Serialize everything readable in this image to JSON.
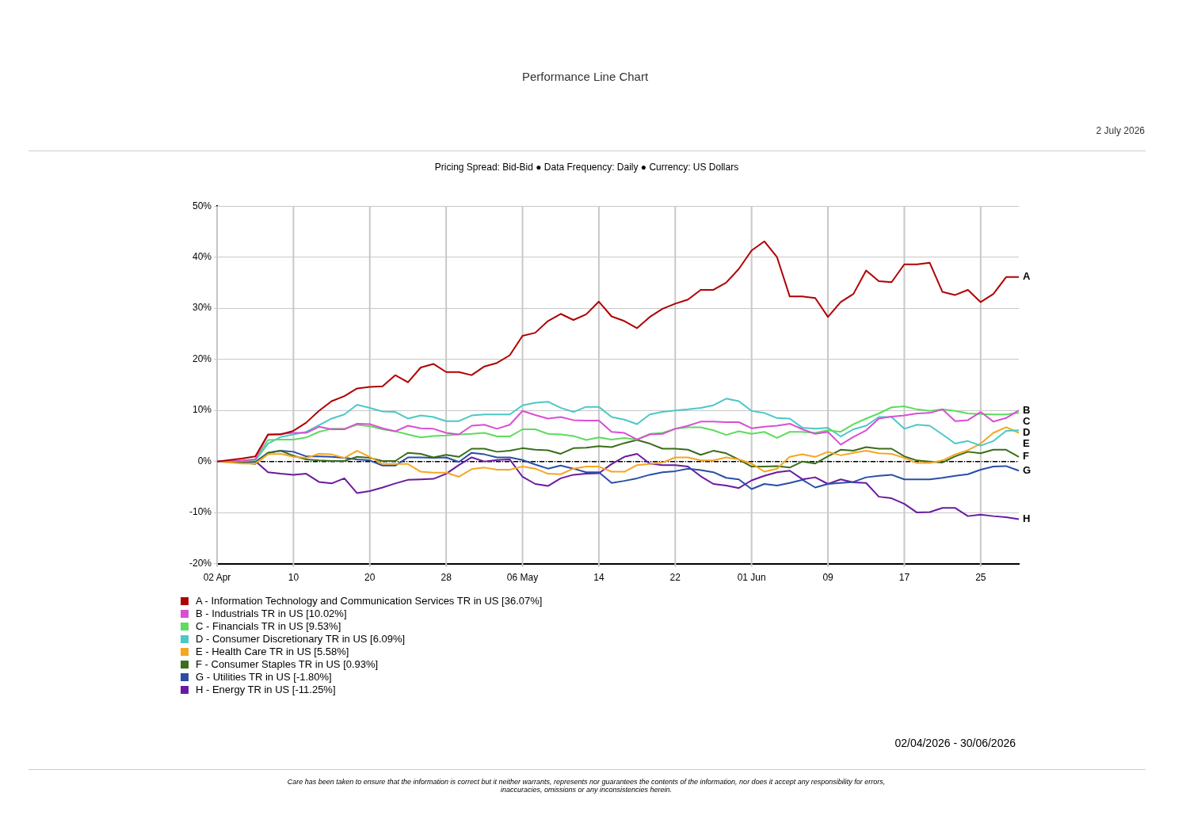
{
  "chart_data": {
    "type": "line",
    "title": "Performance Line Chart",
    "subtitle": "Pricing Spread: Bid-Bid ● Data Frequency: Daily ● Currency: US Dollars",
    "categories": [
      "02 Apr",
      null,
      null,
      null,
      null,
      null,
      "10",
      null,
      null,
      null,
      null,
      null,
      "20",
      null,
      null,
      null,
      null,
      null,
      "28",
      null,
      null,
      null,
      null,
      null,
      "06 May",
      null,
      null,
      null,
      null,
      null,
      "14",
      null,
      null,
      null,
      null,
      null,
      "22",
      null,
      null,
      null,
      null,
      null,
      "01 Jun",
      null,
      null,
      null,
      null,
      null,
      "09",
      null,
      null,
      null,
      null,
      null,
      "17",
      null,
      null,
      null,
      null,
      null,
      "25",
      null,
      null,
      null
    ],
    "ylim": [
      -20,
      50
    ],
    "yticks": [
      {
        "value": -20,
        "label": "-20%"
      },
      {
        "value": -10,
        "label": "-10%"
      },
      {
        "value": 0,
        "label": "0%"
      },
      {
        "value": 10,
        "label": "10%"
      },
      {
        "value": 20,
        "label": "20%"
      },
      {
        "value": 30,
        "label": "30%"
      },
      {
        "value": 40,
        "label": "40%"
      },
      {
        "value": 50,
        "label": "50%"
      }
    ],
    "grid": true,
    "legend": "bottom",
    "marker": "none",
    "line_style": "solid",
    "ref_lines": [
      {
        "axis": "y",
        "value": 0,
        "color": "#000000",
        "line_style": "dashed"
      }
    ],
    "series": [
      {
        "name": "A - Information Technology and Communication Services TR in US [36.07%]",
        "color": "#b00000",
        "values": [
          0,
          0.3,
          0.6,
          1,
          5.3,
          5.3,
          6,
          7.6,
          9.9,
          11.8,
          12.8,
          14.3,
          14.6,
          14.7,
          16.9,
          15.5,
          18.4,
          19.1,
          17.5,
          17.5,
          16.9,
          18.6,
          19.3,
          20.8,
          24.6,
          25.2,
          27.5,
          28.9,
          27.7,
          28.8,
          31.3,
          28.4,
          27.5,
          26.1,
          28.3,
          29.9,
          30.9,
          31.7,
          33.6,
          33.6,
          35,
          37.7,
          41.3,
          43.1,
          40,
          32.3,
          32.3,
          32,
          28.3,
          31.2,
          32.8,
          37.4,
          35.3,
          35.1,
          38.6,
          38.6,
          38.9,
          33.2,
          32.6,
          33.6,
          31.2,
          32.8,
          36.1,
          36.1
        ]
      },
      {
        "name": "B - Industrials TR in US [10.02%]",
        "color": "#d94fd4",
        "values": [
          0,
          0.1,
          0.2,
          0.4,
          5.2,
          5.4,
          5.6,
          5.6,
          6.8,
          6.3,
          6.3,
          7.4,
          7.3,
          6.5,
          5.9,
          7,
          6.5,
          6.4,
          5.6,
          5.3,
          7,
          7.2,
          6.4,
          7.2,
          9.9,
          9.1,
          8.4,
          8.7,
          8.1,
          8,
          8,
          5.8,
          5.6,
          4.3,
          5.3,
          5.4,
          6.4,
          7,
          7.8,
          7.8,
          7.7,
          7.7,
          6.5,
          6.8,
          7,
          7.4,
          6.3,
          5.4,
          5.8,
          3.3,
          4.8,
          6.1,
          8.4,
          8.8,
          9,
          9.4,
          9.5,
          10.2,
          7.9,
          8.1,
          9.7,
          7.8,
          8.5,
          10
        ]
      },
      {
        "name": "C - Financials TR in US [9.53%]",
        "color": "#5ddc5d",
        "values": [
          0,
          0.1,
          0.1,
          0.2,
          4.2,
          4.3,
          4.3,
          4.7,
          5.8,
          6.4,
          6.4,
          7.2,
          6.9,
          6.3,
          5.9,
          5.3,
          4.7,
          5,
          5.1,
          5.3,
          5.4,
          5.6,
          4.9,
          4.9,
          6.3,
          6.3,
          5.4,
          5.3,
          5,
          4.2,
          4.7,
          4.3,
          4.6,
          4.3,
          5.4,
          5.6,
          6.4,
          6.7,
          6.7,
          6.1,
          5.2,
          5.9,
          5.4,
          5.8,
          4.6,
          5.8,
          5.8,
          5.6,
          6.1,
          5.8,
          7.3,
          8.4,
          9.4,
          10.6,
          10.8,
          10.2,
          9.9,
          10.2,
          9.9,
          9.4,
          9.3,
          9.2,
          9.2,
          9.5
        ]
      },
      {
        "name": "D - Consumer Discretionary TR in US [6.09%]",
        "color": "#4cc7c7",
        "values": [
          null,
          null,
          0.2,
          0.2,
          3.5,
          4.8,
          5.3,
          5.8,
          7.1,
          8.4,
          9.2,
          11.1,
          10.5,
          9.8,
          9.7,
          8.4,
          9,
          8.7,
          7.9,
          7.9,
          9,
          9.2,
          9.2,
          9.2,
          11,
          11.5,
          11.7,
          10.5,
          9.7,
          10.7,
          10.7,
          8.7,
          8.2,
          7.3,
          9.2,
          9.7,
          10,
          10.2,
          10.5,
          11,
          12.3,
          11.8,
          9.9,
          9.5,
          8.5,
          8.4,
          6.6,
          6.4,
          6.6,
          4.9,
          6.3,
          7,
          8.7,
          8.7,
          6.4,
          7.2,
          7,
          5.3,
          3.5,
          4,
          3.1,
          4,
          6,
          6.1
        ]
      },
      {
        "name": "E - Health Care TR in US [5.58%]",
        "color": "#f5a623",
        "values": [
          0,
          -0.2,
          -0.4,
          -0.4,
          1.4,
          1.5,
          0.9,
          0.7,
          1.5,
          1.4,
          0.7,
          2.1,
          0.9,
          -0.5,
          -0.5,
          -0.5,
          -2,
          -2.2,
          -2.2,
          -3,
          -1.5,
          -1.2,
          -1.6,
          -1.6,
          -1,
          -1.4,
          -2.4,
          -2.5,
          -1.4,
          -1,
          -1,
          -2,
          -2,
          -0.7,
          -0.5,
          -0.2,
          0.8,
          0.8,
          0.2,
          0.2,
          0.8,
          0.4,
          -0.4,
          -2,
          -1.4,
          0.9,
          1.4,
          0.9,
          1.9,
          1.2,
          1.7,
          2.1,
          1.6,
          1.5,
          0.7,
          -0.3,
          -0.3,
          0.2,
          1.4,
          2.2,
          3.5,
          5.6,
          6.7,
          5.6
        ]
      },
      {
        "name": "F - Consumer Staples TR in US [0.93%]",
        "color": "#3a6e1a",
        "values": [
          0,
          0,
          -0.2,
          -0.5,
          1.7,
          2.1,
          1.1,
          0.4,
          0.2,
          0.1,
          0.1,
          0.9,
          0.7,
          0.1,
          0.1,
          1.7,
          1.5,
          0.8,
          1.3,
          0.9,
          2.5,
          2.5,
          1.9,
          2.1,
          2.6,
          2.3,
          2.2,
          1.5,
          2.6,
          2.7,
          3,
          2.8,
          3.6,
          4.2,
          3.5,
          2.5,
          2.5,
          2.3,
          1.3,
          2.1,
          1.6,
          0.4,
          -1,
          -1,
          -0.9,
          -1.2,
          0,
          -0.4,
          1,
          2.3,
          2.1,
          2.8,
          2.5,
          2.5,
          1,
          0.2,
          0,
          -0.2,
          1,
          1.9,
          1.6,
          2.3,
          2.3,
          0.9
        ]
      },
      {
        "name": "G - Utilities TR in US [-1.80%]",
        "color": "#2a4ea6",
        "values": [
          0,
          0,
          0,
          -0.1,
          1.7,
          2.1,
          1.9,
          1,
          1,
          0.9,
          0.7,
          0.4,
          0.2,
          -0.8,
          -0.8,
          0.8,
          0.8,
          0.7,
          0.8,
          -0.1,
          1.7,
          1.4,
          0.8,
          0.8,
          0.3,
          -0.6,
          -1.4,
          -0.8,
          -1.4,
          -2.1,
          -2.1,
          -4.2,
          -3.8,
          -3.3,
          -2.6,
          -2.1,
          -1.9,
          -1.4,
          -1.7,
          -2.1,
          -3.2,
          -3.5,
          -5.4,
          -4.4,
          -4.7,
          -4.2,
          -3.6,
          -5.1,
          -4.4,
          -4.2,
          -4,
          -3.1,
          -2.8,
          -2.6,
          -3.5,
          -3.5,
          -3.5,
          -3.2,
          -2.8,
          -2.5,
          -1.6,
          -1,
          -0.9,
          -1.8
        ]
      },
      {
        "name": "H - Energy TR in US [-11.25%]",
        "color": "#6a1aa0",
        "values": [
          0,
          0,
          0,
          0.1,
          -2.1,
          -2.4,
          -2.6,
          -2.4,
          -4,
          -4.3,
          -3.3,
          -6.2,
          -5.8,
          -5.1,
          -4.3,
          -3.6,
          -3.5,
          -3.4,
          -2.4,
          -0.7,
          0.8,
          0,
          0.3,
          0.4,
          -3,
          -4.4,
          -4.8,
          -3.3,
          -2.6,
          -2.4,
          -2.3,
          -0.5,
          0.9,
          1.5,
          -0.4,
          -0.7,
          -0.7,
          -1,
          -2.9,
          -4.4,
          -4.7,
          -5.2,
          -3.7,
          -2.8,
          -2.1,
          -1.8,
          -3.5,
          -3.1,
          -4.4,
          -3.5,
          -4.1,
          -4.2,
          -6.9,
          -7.2,
          -8.3,
          -10,
          -9.9,
          -9.1,
          -9.1,
          -10.7,
          -10.4,
          -10.7,
          -10.9,
          -11.3
        ]
      }
    ],
    "annotations": [
      "2 July 2026",
      "02/04/2026 - 30/06/2026",
      "Care has been taken to ensure that the information is correct but it neither warrants, represents nor guarantees the contents of the information, nor does it accept any responsibility for errors, inaccuracies, omissions or any inconsistencies herein.",
      "A",
      "B",
      "C",
      "D",
      "E",
      "F",
      "G",
      "H"
    ]
  }
}
